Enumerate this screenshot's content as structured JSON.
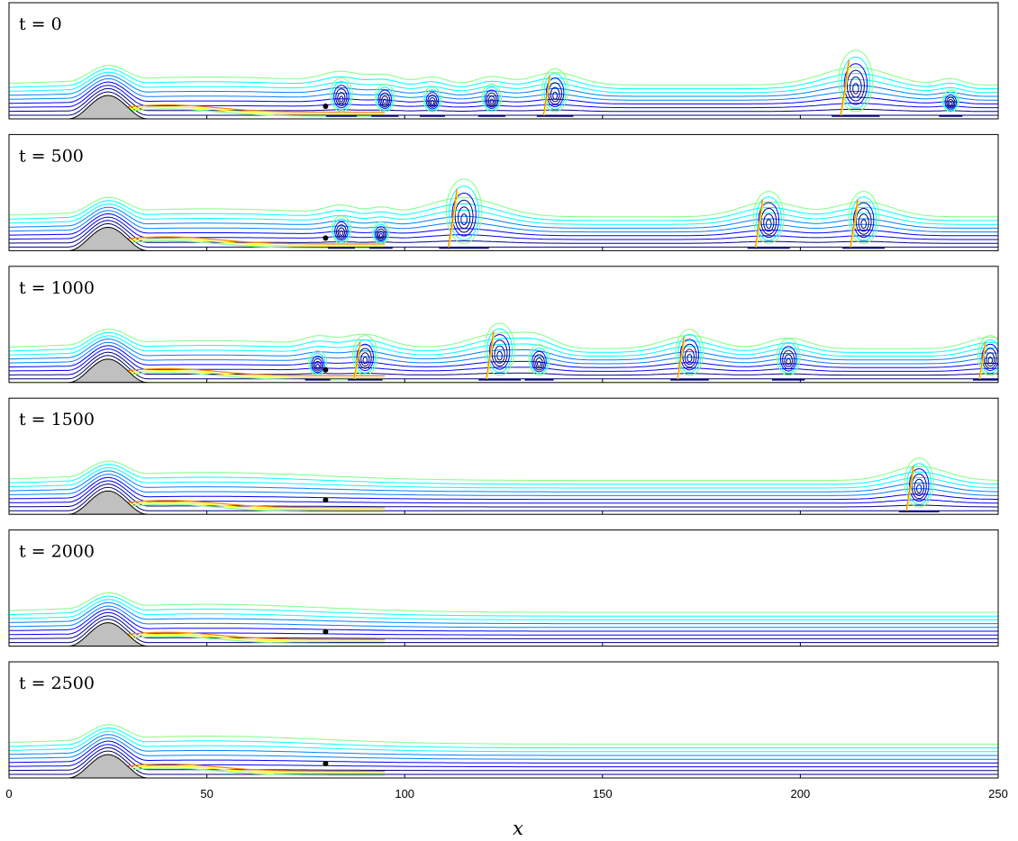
{
  "chart_data": {
    "type": "contour",
    "xlabel": "x",
    "xlim": [
      0,
      250
    ],
    "xticks": [
      0,
      50,
      100,
      150,
      200,
      250
    ],
    "tick_labels": [
      "0",
      "50",
      "100",
      "150",
      "200",
      "250"
    ],
    "hump": {
      "center": 25,
      "half_width": 10
    },
    "probe_x": 80,
    "grid": false,
    "colormap": [
      "#00007f",
      "#0000ff",
      "#0080ff",
      "#00ffff",
      "#80ff80",
      "#ffff00",
      "#ff8000",
      "#ff0000",
      "#7f0000"
    ],
    "panels": [
      {
        "label": "t = 0",
        "vortices": [
          {
            "x": 84,
            "size": 0.55
          },
          {
            "x": 95,
            "size": 0.45
          },
          {
            "x": 107,
            "size": 0.4
          },
          {
            "x": 122,
            "size": 0.45
          },
          {
            "x": 138,
            "size": 0.7
          },
          {
            "x": 214,
            "size": 1.0
          },
          {
            "x": 238,
            "size": 0.35
          }
        ]
      },
      {
        "label": "t = 500",
        "vortices": [
          {
            "x": 84,
            "size": 0.45
          },
          {
            "x": 94,
            "size": 0.35
          },
          {
            "x": 115,
            "size": 1.05
          },
          {
            "x": 192,
            "size": 0.85
          },
          {
            "x": 216,
            "size": 0.85
          }
        ]
      },
      {
        "label": "t = 1000",
        "vortices": [
          {
            "x": 78,
            "size": 0.4
          },
          {
            "x": 90,
            "size": 0.65
          },
          {
            "x": 124,
            "size": 0.85
          },
          {
            "x": 134,
            "size": 0.5
          },
          {
            "x": 172,
            "size": 0.75
          },
          {
            "x": 197,
            "size": 0.6
          },
          {
            "x": 248,
            "size": 0.65
          }
        ]
      },
      {
        "label": "t = 1500",
        "vortices": [
          {
            "x": 230,
            "size": 0.8
          }
        ]
      },
      {
        "label": "t = 2000",
        "vortices": []
      },
      {
        "label": "t = 2500",
        "vortices": []
      }
    ]
  }
}
